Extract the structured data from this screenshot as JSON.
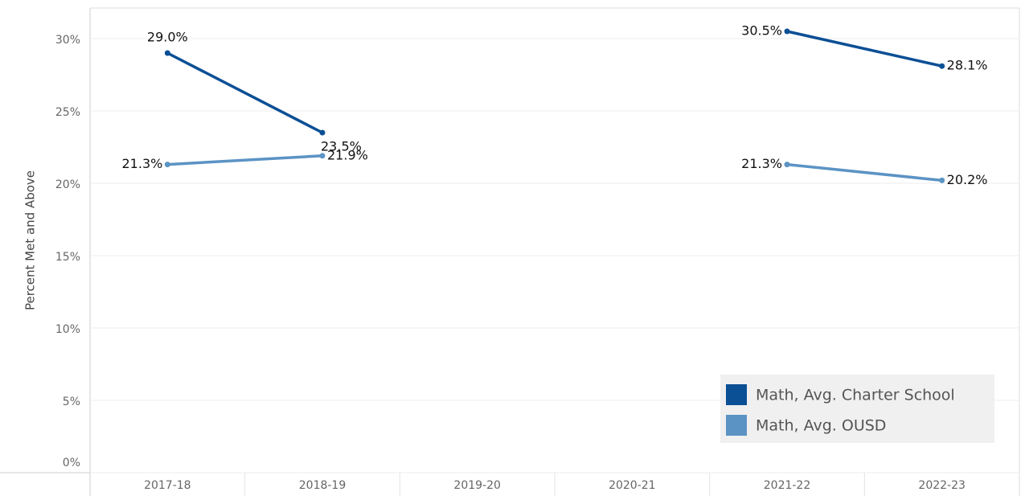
{
  "chart_data": {
    "type": "line",
    "y_axis_label": "Percent Met and Above",
    "categories": [
      "2017-18",
      "2018-19",
      "2019-20",
      "2020-21",
      "2021-22",
      "2022-23"
    ],
    "series": [
      {
        "name": "Math, Avg. Charter School",
        "color": "#0b4f95",
        "values": [
          29.0,
          23.5,
          null,
          null,
          30.5,
          28.1
        ],
        "value_labels": [
          "29.0%",
          "23.5%",
          null,
          null,
          "30.5%",
          "28.1%"
        ]
      },
      {
        "name": "Math, Avg. OUSD",
        "color": "#5b93c4",
        "values": [
          21.3,
          21.9,
          null,
          null,
          21.3,
          20.2
        ],
        "value_labels": [
          "21.3%",
          "21.9%",
          null,
          null,
          "21.3%",
          "20.2%"
        ]
      }
    ],
    "ylim": [
      0,
      32
    ],
    "yticks": [
      {
        "value": 0,
        "label": "0%"
      },
      {
        "value": 5,
        "label": "5%"
      },
      {
        "value": 10,
        "label": "10%"
      },
      {
        "value": 15,
        "label": "15%"
      },
      {
        "value": 20,
        "label": "20%"
      },
      {
        "value": 25,
        "label": "25%"
      },
      {
        "value": 30,
        "label": "30%"
      }
    ],
    "grid": true,
    "legend": "bottom-right"
  }
}
